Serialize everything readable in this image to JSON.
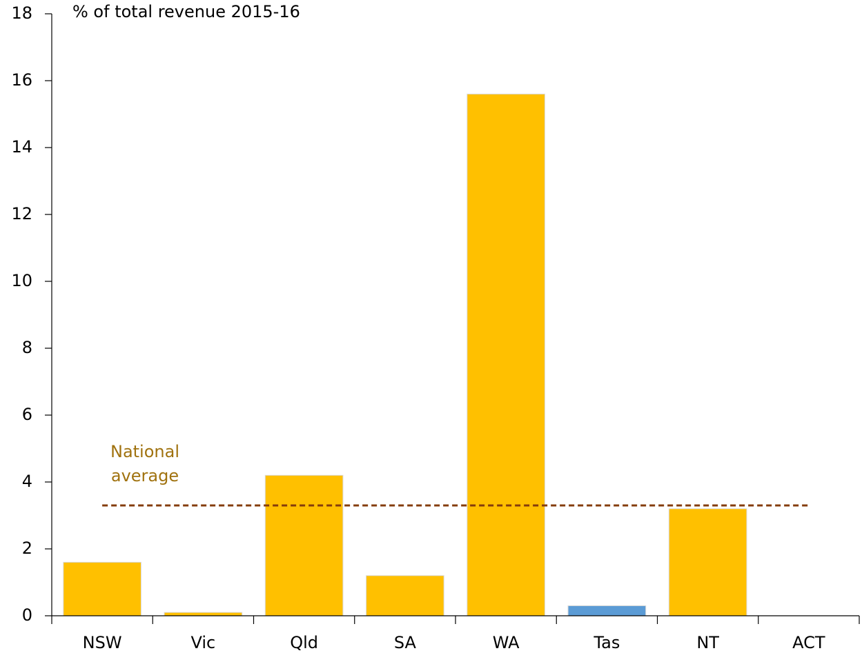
{
  "chart_data": {
    "type": "bar",
    "title": "% of total revenue 2015-16",
    "categories": [
      "NSW",
      "Vic",
      "Qld",
      "SA",
      "WA",
      "Tas",
      "NT",
      "ACT"
    ],
    "values": [
      1.6,
      0.1,
      4.2,
      1.2,
      15.6,
      0.3,
      3.2,
      0
    ],
    "colors": [
      "#ffc000",
      "#ffc000",
      "#ffc000",
      "#ffc000",
      "#ffc000",
      "#5b9bd5",
      "#ffc000",
      "#ffc000"
    ],
    "ylim": [
      0,
      18
    ],
    "yticks": [
      0,
      2,
      4,
      6,
      8,
      10,
      12,
      14,
      16,
      18
    ],
    "grid": false,
    "reference_line": {
      "label_lines": [
        "National",
        "average"
      ],
      "value": 3.3,
      "color": "#843c0c",
      "label_color": "#a0720f"
    }
  }
}
